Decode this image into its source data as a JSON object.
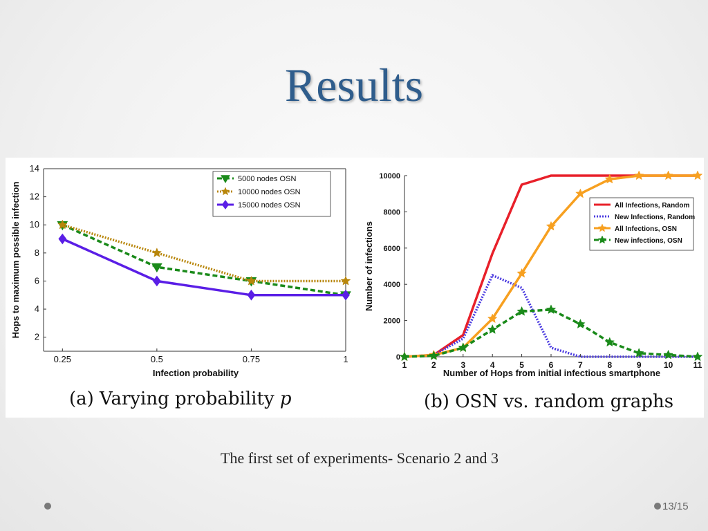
{
  "slide": {
    "title": "Results",
    "subtitle": "The first set of experiments- Scenario 2 and 3",
    "page_number": "13/15"
  },
  "captions": {
    "a_prefix": "(a) Varying probability ",
    "a_var": "p",
    "b": "(b) OSN vs. random graphs"
  },
  "chart_data": [
    {
      "type": "line",
      "xlabel": "Infection probability",
      "ylabel": "Hops to maximum possible infection",
      "xlim": [
        0.2,
        1.0
      ],
      "ylim": [
        1,
        14
      ],
      "xticks": [
        "0.25",
        "0.5",
        "0.75",
        "1"
      ],
      "xtick_values": [
        0.25,
        0.5,
        0.75,
        1
      ],
      "yticks": [
        2,
        4,
        6,
        8,
        10,
        12,
        14
      ],
      "legend_position": "top-right",
      "grid": false,
      "series": [
        {
          "name": "5000 nodes OSN",
          "x": [
            0.25,
            0.5,
            0.75,
            1
          ],
          "y": [
            10,
            7,
            6,
            5
          ],
          "color": "#1a8a1a",
          "style": "dashed",
          "marker": "triangle-down"
        },
        {
          "name": "10000 nodes OSN",
          "x": [
            0.25,
            0.5,
            0.75,
            1
          ],
          "y": [
            10,
            8,
            6,
            6
          ],
          "color": "#b8860b",
          "style": "dotted",
          "marker": "star"
        },
        {
          "name": "15000 nodes OSN",
          "x": [
            0.25,
            0.5,
            0.75,
            1
          ],
          "y": [
            9,
            6,
            5,
            5
          ],
          "color": "#5a1ee6",
          "style": "solid",
          "marker": "diamond"
        }
      ]
    },
    {
      "type": "line",
      "xlabel": "Number of Hops from initial infectious smartphone",
      "ylabel": "Number of infections",
      "xlim": [
        1,
        11
      ],
      "ylim": [
        0,
        10000
      ],
      "xticks": [
        "1",
        "2",
        "3",
        "4",
        "5",
        "6",
        "7",
        "8",
        "9",
        "10",
        "11"
      ],
      "xtick_values": [
        1,
        2,
        3,
        4,
        5,
        6,
        7,
        8,
        9,
        10,
        11
      ],
      "yticks": [
        0,
        2000,
        4000,
        6000,
        8000,
        10000
      ],
      "legend_position": "right",
      "grid": false,
      "series": [
        {
          "name": "All Infections, Random",
          "x": [
            1,
            2,
            3,
            4,
            5,
            6,
            7,
            8,
            9,
            10,
            11
          ],
          "y": [
            0,
            100,
            1200,
            5700,
            9500,
            10000,
            10000,
            10000,
            10000,
            10000,
            10000
          ],
          "color": "#e8202a",
          "style": "solid",
          "marker": "none"
        },
        {
          "name": "New Infections, Random",
          "x": [
            1,
            2,
            3,
            4,
            5,
            6,
            7,
            8,
            9,
            10,
            11
          ],
          "y": [
            0,
            100,
            1000,
            4500,
            3800,
            500,
            0,
            0,
            0,
            0,
            0
          ],
          "color": "#4a3ae0",
          "style": "dotted",
          "marker": "none"
        },
        {
          "name": "All Infections, OSN",
          "x": [
            1,
            2,
            3,
            4,
            5,
            6,
            7,
            8,
            9,
            10,
            11
          ],
          "y": [
            0,
            100,
            500,
            2100,
            4600,
            7200,
            9000,
            9800,
            10000,
            10000,
            10000
          ],
          "color": "#f7a020",
          "style": "solid",
          "marker": "star"
        },
        {
          "name": "New infections, OSN",
          "x": [
            1,
            2,
            3,
            4,
            5,
            6,
            7,
            8,
            9,
            10,
            11
          ],
          "y": [
            0,
            50,
            500,
            1500,
            2500,
            2600,
            1800,
            800,
            200,
            100,
            0
          ],
          "color": "#1a8a1a",
          "style": "dashed",
          "marker": "star"
        }
      ]
    }
  ]
}
